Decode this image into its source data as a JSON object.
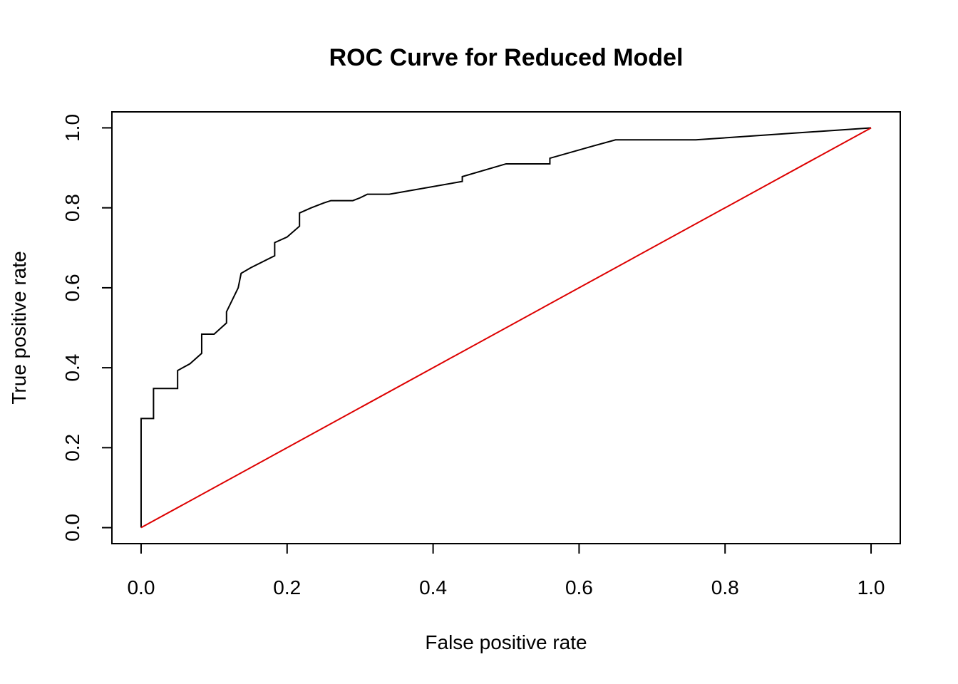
{
  "chart_data": {
    "type": "line",
    "title": "ROC Curve for Reduced Model",
    "xlabel": "False positive rate",
    "ylabel": "True positive rate",
    "xlim": [
      -0.04,
      1.04
    ],
    "ylim": [
      -0.04,
      1.04
    ],
    "x_ticks": [
      0.0,
      0.2,
      0.4,
      0.6,
      0.8,
      1.0
    ],
    "x_tick_labels": [
      "0.0",
      "0.2",
      "0.4",
      "0.6",
      "0.8",
      "1.0"
    ],
    "y_ticks": [
      0.0,
      0.2,
      0.4,
      0.6,
      0.8,
      1.0
    ],
    "y_tick_labels": [
      "0.0",
      "0.2",
      "0.4",
      "0.6",
      "0.8",
      "1.0"
    ],
    "grid": false,
    "series": [
      {
        "color": "#000000",
        "x": [
          0.0,
          0.0,
          0.017,
          0.017,
          0.05,
          0.05,
          0.067,
          0.083,
          0.083,
          0.1,
          0.117,
          0.117,
          0.133,
          0.137,
          0.15,
          0.183,
          0.183,
          0.2,
          0.217,
          0.217,
          0.233,
          0.25,
          0.26,
          0.29,
          0.3,
          0.31,
          0.34,
          0.44,
          0.44,
          0.5,
          0.56,
          0.56,
          0.62,
          0.65,
          0.76,
          1.0
        ],
        "y": [
          0.0,
          0.273,
          0.273,
          0.348,
          0.348,
          0.393,
          0.41,
          0.436,
          0.484,
          0.484,
          0.512,
          0.54,
          0.6,
          0.636,
          0.65,
          0.68,
          0.713,
          0.727,
          0.754,
          0.787,
          0.8,
          0.812,
          0.818,
          0.818,
          0.825,
          0.834,
          0.834,
          0.866,
          0.878,
          0.91,
          0.91,
          0.924,
          0.955,
          0.97,
          0.97,
          1.0
        ]
      },
      {
        "color": "#dd0000",
        "x": [
          0.0,
          1.0
        ],
        "y": [
          0.0,
          1.0
        ]
      }
    ]
  }
}
